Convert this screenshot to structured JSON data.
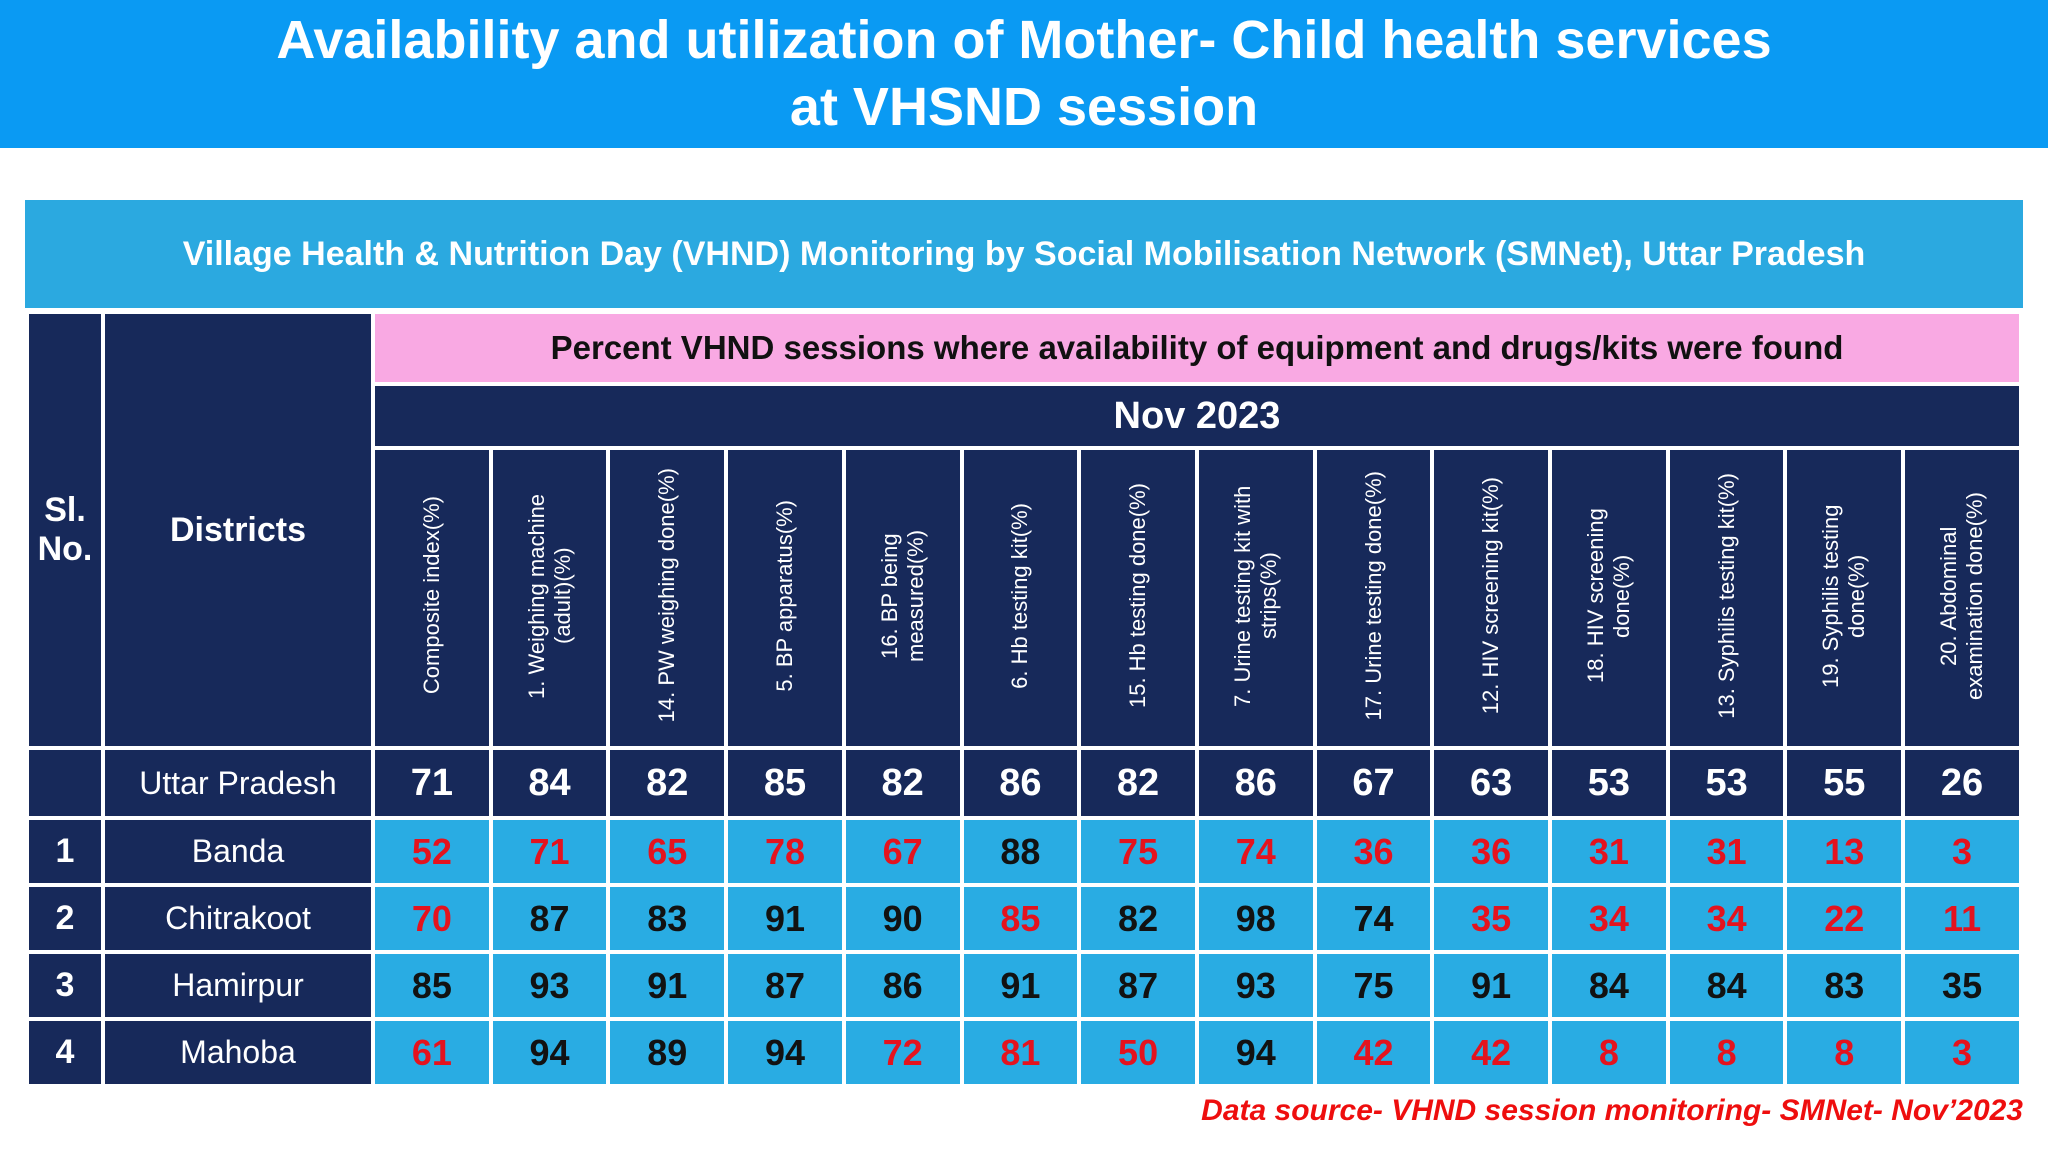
{
  "page": {
    "title_lines": [
      "Availability and utilization of Mother- Child health services",
      "at VHSND session"
    ],
    "subtitle": "Village Health & Nutrition Day (VHND) Monitoring by Social Mobilisation Network (SMNet), Uttar Pradesh",
    "source_note": "Data source- VHND session monitoring- SMNet- Nov’2023"
  },
  "table": {
    "corner": {
      "sl_no": "Sl. No.",
      "districts": "Districts"
    },
    "band_header": "Percent VHND sessions where availability of equipment and drugs/kits were found",
    "period": "Nov 2023",
    "columns": [
      "Composite index(%)",
      "1. Weighing machine (adult)(%)",
      "14. PW weighing done(%)",
      "5. BP apparatus(%)",
      "16. BP being measured(%)",
      "6. Hb testing kit(%)",
      "15. Hb testing done(%)",
      "7. Urine testing kit with strips(%)",
      "17. Urine testing done(%)",
      "12. HIV screening kit(%)",
      "18. HIV screening done(%)",
      "13. Syphilis testing kit(%)",
      "19. Syphilis testing done(%)",
      "20. Abdominal examination done(%)"
    ],
    "state_row": {
      "sl": "",
      "district": "Uttar Pradesh",
      "values": [
        "71",
        "84",
        "82",
        "85",
        "82",
        "86",
        "82",
        "86",
        "67",
        "63",
        "53",
        "53",
        "55",
        "26"
      ]
    },
    "rows": [
      {
        "sl": "1",
        "district": "Banda",
        "values": [
          "52",
          "71",
          "65",
          "78",
          "67",
          "88",
          "75",
          "74",
          "36",
          "36",
          "31",
          "31",
          "13",
          "3"
        ],
        "red": [
          1,
          1,
          1,
          1,
          1,
          0,
          1,
          1,
          1,
          1,
          1,
          1,
          1,
          1
        ]
      },
      {
        "sl": "2",
        "district": "Chitrakoot",
        "values": [
          "70",
          "87",
          "83",
          "91",
          "90",
          "85",
          "82",
          "98",
          "74",
          "35",
          "34",
          "34",
          "22",
          "11"
        ],
        "red": [
          1,
          0,
          0,
          0,
          0,
          1,
          0,
          0,
          0,
          1,
          1,
          1,
          1,
          1
        ]
      },
      {
        "sl": "3",
        "district": "Hamirpur",
        "values": [
          "85",
          "93",
          "91",
          "87",
          "86",
          "91",
          "87",
          "93",
          "75",
          "91",
          "84",
          "84",
          "83",
          "35"
        ],
        "red": [
          0,
          0,
          0,
          0,
          0,
          0,
          0,
          0,
          0,
          0,
          0,
          0,
          0,
          0
        ]
      },
      {
        "sl": "4",
        "district": "Mahoba",
        "values": [
          "61",
          "94",
          "89",
          "94",
          "72",
          "81",
          "50",
          "94",
          "42",
          "42",
          "8",
          "8",
          "8",
          "3"
        ],
        "red": [
          1,
          0,
          0,
          0,
          1,
          1,
          1,
          0,
          1,
          1,
          1,
          1,
          1,
          1
        ]
      }
    ]
  },
  "colors": {
    "title_bg": "#0a9af3",
    "subtitle_bg": "#2ba9e0",
    "navy": "#17295a",
    "cell_blue": "#29ace3",
    "band_pink": "#f9a9e3",
    "highlight_red": "#e4131e",
    "value_black": "#121212",
    "source_red": "#ee0e0e"
  }
}
